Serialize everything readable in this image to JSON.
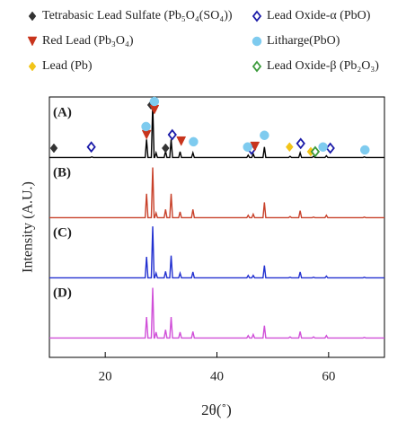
{
  "chart_data": {
    "type": "line",
    "xlabel": "2θ(˚)",
    "ylabel": "Intensity (A.U.)",
    "xlim": [
      10,
      70
    ],
    "xticks": [
      20,
      40,
      60
    ],
    "ylim": [
      0,
      110
    ],
    "x": [
      10,
      17.35,
      17.6,
      17.85,
      27.15,
      27.4,
      27.65,
      28.25,
      28.5,
      28.75,
      28.85,
      29.1,
      29.35,
      30.55,
      30.8,
      31.05,
      31.55,
      31.8,
      32.05,
      33.15,
      33.4,
      33.65,
      35.45,
      35.7,
      35.95,
      45.35,
      45.6,
      45.85,
      46.25,
      46.5,
      46.75,
      48.25,
      48.5,
      48.75,
      52.85,
      53.1,
      53.35,
      54.65,
      54.9,
      55.15,
      57.05,
      57.3,
      57.55,
      59.35,
      59.6,
      59.85,
      66.15,
      66.4,
      66.65,
      70
    ],
    "series": [
      {
        "name": "(A)",
        "color": "#000000",
        "values": [
          4,
          4,
          5,
          4,
          4,
          35,
          4,
          4,
          95,
          4,
          4,
          12,
          4,
          4,
          15,
          4,
          4,
          35,
          4,
          4,
          14,
          4,
          4,
          12,
          4,
          4,
          8,
          4,
          4,
          10,
          4,
          4,
          22,
          4,
          4,
          6,
          4,
          4,
          12,
          4,
          4,
          6,
          4,
          4,
          7,
          4,
          4,
          5,
          4,
          4
        ]
      },
      {
        "name": "(B)",
        "color": "#c8412a",
        "values": [
          4,
          4,
          4,
          4,
          4,
          45,
          4,
          4,
          90,
          4,
          4,
          12,
          4,
          4,
          18,
          4,
          4,
          45,
          4,
          4,
          14,
          4,
          4,
          18,
          4,
          4,
          8,
          4,
          4,
          10,
          4,
          4,
          30,
          4,
          4,
          6,
          4,
          4,
          16,
          4,
          4,
          5,
          4,
          4,
          8,
          4,
          4,
          5,
          4,
          4
        ]
      },
      {
        "name": "(C)",
        "color": "#2230d0",
        "values": [
          4,
          4,
          4,
          4,
          4,
          40,
          4,
          4,
          92,
          4,
          4,
          12,
          4,
          4,
          15,
          4,
          4,
          42,
          4,
          4,
          12,
          4,
          4,
          14,
          4,
          4,
          8,
          4,
          4,
          8,
          4,
          4,
          25,
          4,
          4,
          5,
          4,
          4,
          14,
          4,
          4,
          5,
          4,
          4,
          7,
          4,
          4,
          5,
          4,
          4
        ]
      },
      {
        "name": "(D)",
        "color": "#d04fd8",
        "values": [
          4,
          4,
          4,
          4,
          4,
          40,
          4,
          4,
          90,
          4,
          4,
          14,
          4,
          4,
          18,
          4,
          4,
          40,
          4,
          4,
          14,
          4,
          4,
          15,
          4,
          4,
          8,
          4,
          4,
          10,
          4,
          4,
          25,
          4,
          4,
          6,
          4,
          4,
          15,
          4,
          4,
          6,
          4,
          4,
          8,
          4,
          4,
          5,
          4,
          4
        ]
      }
    ],
    "phases": [
      {
        "name": "Tetrabasic Lead Sulfate (Pb₅O₄(SO₄))",
        "color": "#333333",
        "marker": "diamond",
        "filled": true,
        "x": [
          10.8,
          28.2,
          30.8
        ],
        "y": [
          20,
          94,
          20
        ]
      },
      {
        "name": "Lead Oxide-α (PbO)",
        "color": "#1a1aa8",
        "marker": "diamond",
        "filled": false,
        "x": [
          17.5,
          32,
          46.2,
          55,
          60.3
        ],
        "y": [
          22,
          43,
          18,
          28,
          20
        ]
      },
      {
        "name": "Red Lead (Pb₃O₄)",
        "color": "#c8341c",
        "marker": "triangle-down",
        "filled": true,
        "x": [
          27.4,
          28.8,
          33.6,
          46.8
        ],
        "y": [
          43,
          86,
          32,
          23
        ]
      },
      {
        "name": "Litharge(PbO)",
        "color": "#7ecbef",
        "marker": "circle",
        "filled": true,
        "x": [
          27.3,
          28.8,
          35.8,
          45.5,
          48.5,
          59,
          66.5
        ],
        "y": [
          57,
          100,
          31,
          22,
          42,
          22,
          17
        ]
      },
      {
        "name": "Lead (Pb)",
        "color": "#f2c418",
        "marker": "diamond",
        "filled": true,
        "x": [
          53,
          56.8
        ],
        "y": [
          22,
          14
        ]
      },
      {
        "name": "Lead Oxide-β (Pb₂O₃)",
        "color": "#3a9a3a",
        "marker": "diamond",
        "filled": false,
        "x": [
          57.6
        ],
        "y": [
          14
        ]
      }
    ]
  }
}
